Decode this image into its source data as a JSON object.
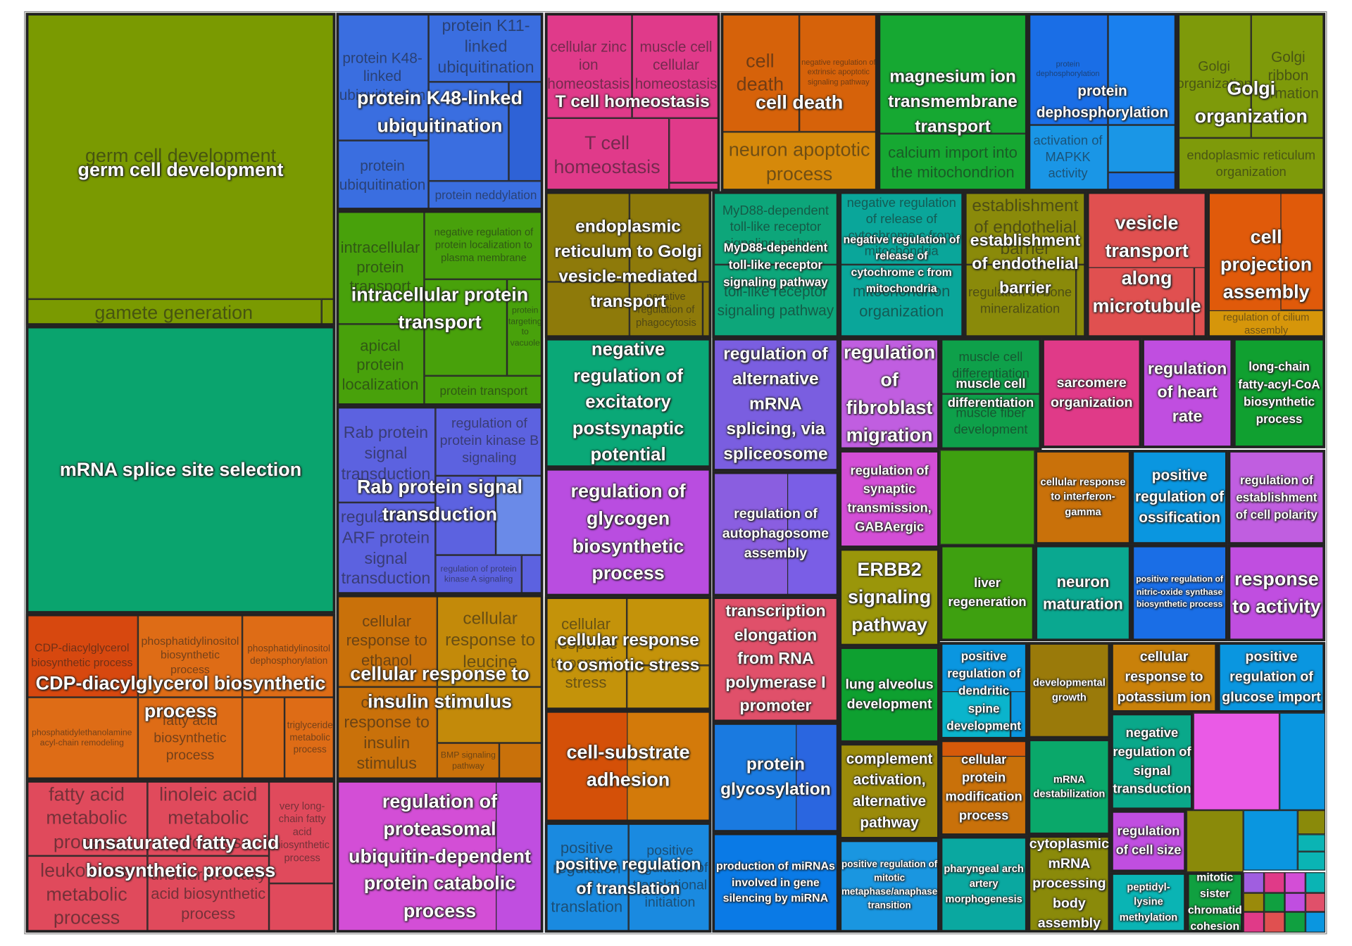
{
  "groups": [
    {
      "label": "germ cell development",
      "color": "#7a9a01",
      "terms": [
        {
          "label": "germ cell development"
        },
        {
          "label": "gamete generation"
        }
      ]
    },
    {
      "label": "mRNA splice site selection",
      "color": "#0aa46e",
      "terms": []
    },
    {
      "label": "CDP-diacylglycerol biosynthetic process",
      "color": "#de6c16",
      "terms": [
        {
          "label": "CDP-diacylglycerol biosynthetic process",
          "color": "#d7480f"
        },
        {
          "label": "phosphatidylinositol biosynthetic process"
        },
        {
          "label": "phosphatidylinositol dephosphorylation"
        },
        {
          "label": "phosphatidylethanolamine acyl-chain remodeling"
        },
        {
          "label": "fatty acid biosynthetic process"
        },
        {
          "label": "triglyceride metabolic process"
        }
      ]
    },
    {
      "label": "unsaturated fatty acid biosynthetic process",
      "color": "#e04a5c",
      "terms": [
        {
          "label": "fatty acid metabolic process"
        },
        {
          "label": "linoleic acid metabolic process"
        },
        {
          "label": "very long-chain fatty acid biosynthetic process"
        },
        {
          "label": "leukotriene metabolic process"
        },
        {
          "label": "unsaturated fatty acid biosynthetic process"
        }
      ]
    },
    {
      "label": "protein K48-linked ubiquitination",
      "color": "#3a6ee0",
      "terms": [
        {
          "label": "protein K48-linked ubiquitination"
        },
        {
          "label": "protein K11-linked ubiquitination"
        },
        {
          "label": "protein ubiquitination"
        },
        {
          "label": "protein neddylation"
        }
      ]
    },
    {
      "label": "intracellular protein transport",
      "color": "#48a10b",
      "terms": [
        {
          "label": "intracellular protein transport"
        },
        {
          "label": "negative regulation of protein localization to plasma membrane"
        },
        {
          "label": "apical protein localization"
        },
        {
          "label": "protein targeting to vacuole"
        },
        {
          "label": "protein transport"
        }
      ]
    },
    {
      "label": "Rab protein signal transduction",
      "color": "#5c62e0",
      "terms": [
        {
          "label": "Rab protein signal transduction"
        },
        {
          "label": "regulation of protein kinase B signaling"
        },
        {
          "label": "regulation of ARF protein signal transduction"
        },
        {
          "label": "regulation of protein kinase A signaling"
        }
      ]
    },
    {
      "label": "cellular response to insulin stimulus",
      "color": "#c9710a",
      "terms": [
        {
          "label": "cellular response to ethanol"
        },
        {
          "label": "cellular response to leucine",
          "color": "#c38a0a"
        },
        {
          "label": "cellular response to insulin stimulus"
        },
        {
          "label": "BMP signaling pathway"
        }
      ]
    },
    {
      "label": "regulation of proteasomal ubiquitin-dependent protein catabolic process",
      "color": "#d34ed6",
      "terms": []
    },
    {
      "label": "T cell homeostasis",
      "color": "#e03a8a",
      "terms": [
        {
          "label": "cellular zinc ion homeostasis"
        },
        {
          "label": "muscle cell cellular homeostasis"
        },
        {
          "label": "T cell homeostasis"
        }
      ]
    },
    {
      "label": "endoplasmic reticulum to Golgi vesicle-mediated transport",
      "color": "#8e7a0a",
      "terms": [
        {
          "label": "negative regulation of phagocytosis"
        }
      ]
    },
    {
      "label": "negative regulation of excitatory postsynaptic potential",
      "color": "#0aa877",
      "terms": []
    },
    {
      "label": "regulation of glycogen biosynthetic process",
      "color": "#b94de0",
      "terms": []
    },
    {
      "label": "cellular response to osmotic stress",
      "color": "#c4930a",
      "terms": [
        {
          "label": "cellular response to osmotic stress"
        }
      ]
    },
    {
      "label": "cell-substrate adhesion",
      "color": "#d45008",
      "terms": []
    },
    {
      "label": "positive regulation of translation",
      "color": "#1a8ae0",
      "terms": [
        {
          "label": "positive regulation of translation"
        },
        {
          "label": "positive regulation of translational initiation"
        }
      ]
    },
    {
      "label": "cell death",
      "color": "#d6620a",
      "terms": [
        {
          "label": "cell death"
        },
        {
          "label": "negative regulation of extrinsic apoptotic signaling pathway"
        },
        {
          "label": "neuron apoptotic process",
          "color": "#d6890a"
        }
      ]
    },
    {
      "label": "magnesium ion transmembrane transport",
      "color": "#16a832",
      "terms": [
        {
          "label": "calcium import into the mitochondrion"
        }
      ]
    },
    {
      "label": "protein dephosphorylation",
      "color": "#1a6ee6",
      "terms": [
        {
          "label": "protein dephosphorylation"
        },
        {
          "label": "activation of MAPKK activity",
          "color": "#1a96e6"
        }
      ]
    },
    {
      "label": "Golgi organization",
      "color": "#7e9a0a",
      "terms": [
        {
          "label": "Golgi organization"
        },
        {
          "label": "Golgi ribbon formation"
        },
        {
          "label": "endoplasmic reticulum organization"
        }
      ]
    },
    {
      "label": "MyD88-dependent toll-like receptor signaling pathway",
      "color": "#0da67a",
      "terms": [
        {
          "label": "MyD88-dependent toll-like receptor signaling pathway"
        },
        {
          "label": "toll-like receptor signaling pathway"
        }
      ]
    },
    {
      "label": "negative regulation of release of cytochrome c from mitochondria",
      "color": "#0aa69a",
      "terms": [
        {
          "label": "negative regulation of release of cytochrome c from mitochondria"
        },
        {
          "label": "mitochondrion organization"
        }
      ]
    },
    {
      "label": "establishment of endothelial barrier",
      "color": "#8a8a0a",
      "terms": [
        {
          "label": "establishment of endothelial barrier"
        },
        {
          "label": "regulation of bone mineralization"
        }
      ]
    },
    {
      "label": "vesicle transport along microtubule",
      "color": "#e05050",
      "terms": []
    },
    {
      "label": "cell projection assembly",
      "color": "#e05a0a",
      "terms": [
        {
          "label": "regulation of cilium assembly",
          "color": "#d6960a"
        }
      ]
    },
    {
      "label": "regulation of alternative mRNA splicing, via spliceosome",
      "color": "#7a5ee0",
      "terms": []
    },
    {
      "label": "regulation of fibroblast migration",
      "color": "#c05ee0",
      "terms": []
    },
    {
      "label": "muscle cell differentiation",
      "color": "#0ea04a",
      "terms": [
        {
          "label": "muscle cell differentiation"
        },
        {
          "label": "muscle fiber development"
        }
      ]
    },
    {
      "label": "sarcomere organization",
      "color": "#e03a88",
      "terms": []
    },
    {
      "label": "regulation of heart rate",
      "color": "#c04ee0",
      "terms": []
    },
    {
      "label": "long-chain fatty-acyl-CoA biosynthetic process",
      "color": "#10a030",
      "terms": []
    },
    {
      "label": "regulation of autophagosome assembly",
      "color": "#8a5ee0",
      "terms": []
    },
    {
      "label": "regulation of synaptic transmission, GABAergic",
      "color": "#d34ed6",
      "terms": []
    },
    {
      "label": "cellular response to interferon-gamma",
      "color": "#c9710a",
      "terms": []
    },
    {
      "label": "positive regulation of ossification",
      "color": "#0a96e0",
      "terms": []
    },
    {
      "label": "regulation of establishment of cell polarity",
      "color": "#c05ee0",
      "terms": []
    },
    {
      "label": "ERBB2 signaling pathway",
      "color": "#9a960a",
      "terms": []
    },
    {
      "label": "liver regeneration",
      "color": "#3ea010",
      "terms": []
    },
    {
      "label": "neuron maturation",
      "color": "#0aa890",
      "terms": []
    },
    {
      "label": "positive regulation of nitric-oxide synthase biosynthetic process",
      "color": "#1a6ee6",
      "terms": []
    },
    {
      "label": "response to activity",
      "color": "#c04ee0",
      "terms": []
    },
    {
      "label": "transcription elongation from RNA polymerase I promoter",
      "color": "#e0506a",
      "terms": []
    },
    {
      "label": "protein glycosylation",
      "color": "#1a7ae0",
      "terms": []
    },
    {
      "label": "production of miRNAs involved in gene silencing by miRNA",
      "color": "#0a7ae6",
      "terms": []
    },
    {
      "label": "lung alveolus development",
      "color": "#0ea030",
      "terms": []
    },
    {
      "label": "complement activation, alternative pathway",
      "color": "#9a8a0a",
      "terms": []
    },
    {
      "label": "positive regulation of mitotic metaphase/anaphase transition",
      "color": "#1a96e0",
      "terms": []
    },
    {
      "label": "positive regulation of dendritic spine development",
      "color": "#0a96e0",
      "terms": []
    },
    {
      "label": "cellular protein modification process",
      "color": "#c9710a",
      "terms": []
    },
    {
      "label": "pharyngeal arch artery morphogenesis",
      "color": "#0aa8a0",
      "terms": []
    },
    {
      "label": "developmental growth",
      "color": "#9a7a0a",
      "terms": []
    },
    {
      "label": "mRNA destabilization",
      "color": "#0aa86a",
      "terms": []
    },
    {
      "label": "cytoplasmic mRNA processing body assembly",
      "color": "#8a8a0a",
      "terms": []
    },
    {
      "label": "cellular response to potassium ion",
      "color": "#c9810a",
      "terms": []
    },
    {
      "label": "positive regulation of glucose import",
      "color": "#0a96e0",
      "terms": []
    },
    {
      "label": "negative regulation of signal transduction",
      "color": "#0aa88a",
      "terms": []
    },
    {
      "label": "regulation of cell size",
      "color": "#c04ee0",
      "terms": []
    },
    {
      "label": "peptidyl-lysine methylation",
      "color": "#0ab4b4",
      "terms": []
    },
    {
      "label": "mitotic sister chromatid cohesion",
      "color": "#10a040",
      "terms": []
    }
  ]
}
